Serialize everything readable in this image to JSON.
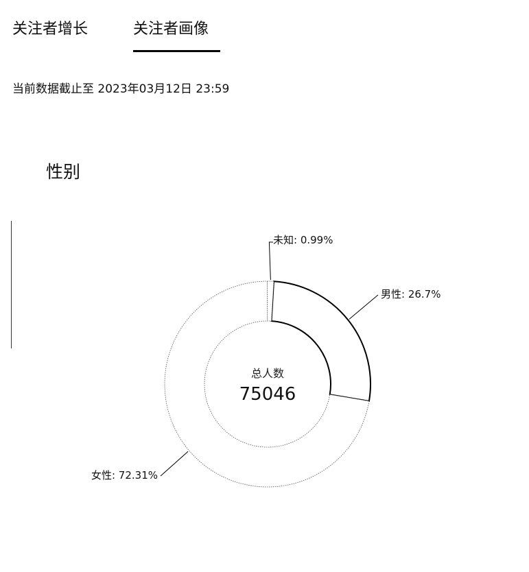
{
  "tabs": [
    {
      "label": "关注者增长",
      "active": false
    },
    {
      "label": "关注者画像",
      "active": true
    }
  ],
  "data_cutoff": "当前数据截止至 2023年03月12日 23:59",
  "section": {
    "title": "性别"
  },
  "center": {
    "label": "总人数",
    "value": "75046"
  },
  "chart_data": {
    "type": "pie",
    "donut": true,
    "slices": [
      {
        "label": "男性: 26.7%",
        "value": 26.7,
        "highlighted": true
      },
      {
        "label": "女性: 72.31%",
        "value": 72.31,
        "highlighted": false
      },
      {
        "label": "未知: 0.99%",
        "value": 0.99,
        "highlighted": false
      }
    ],
    "total_label": "总人数",
    "total_value": 75046
  }
}
